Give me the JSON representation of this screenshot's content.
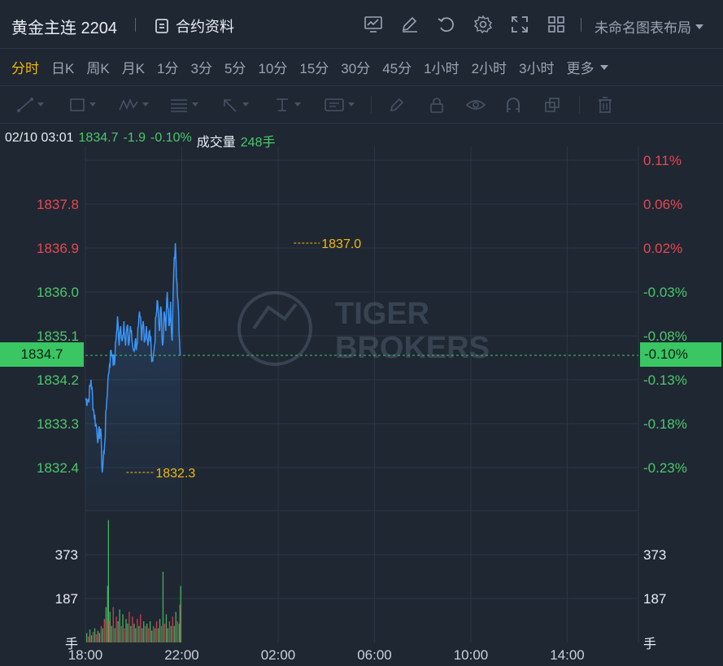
{
  "header": {
    "title": "黄金主连 2204",
    "contract_label": "合约资料",
    "layout_label": "未命名图表布局",
    "icons": [
      "chart-template-icon",
      "edit-icon",
      "undo-icon",
      "settings-icon",
      "fullscreen-icon",
      "grid-layout-icon"
    ]
  },
  "timeframes": {
    "items": [
      "分时",
      "日K",
      "周K",
      "月K",
      "1分",
      "3分",
      "5分",
      "10分",
      "15分",
      "30分",
      "45分",
      "1小时",
      "2小时",
      "3小时"
    ],
    "active": "分时",
    "more_label": "更多"
  },
  "drawing_tools": [
    "trendline-icon",
    "rectangle-icon",
    "pattern-icon",
    "fib-icon",
    "arrow-icon",
    "text-vertical-icon",
    "annotation-icon",
    "brush-icon",
    "lock-icon",
    "eye-icon",
    "magnet-icon",
    "copy-icon",
    "trash-icon"
  ],
  "info_bar": {
    "datetime": "02/10 03:01",
    "price": "1834.7",
    "change": "-1.9",
    "change_pct": "-0.10%",
    "volume_label": "成交量",
    "volume": "248手"
  },
  "watermark": [
    "TIGER",
    "BROKERS"
  ],
  "colors": {
    "up": "#e8474e",
    "down": "#4cc86a",
    "line": "#3d94f6",
    "accent": "#f0b90b",
    "background": "#1f2733"
  },
  "chart_data": {
    "type": "line",
    "x_ticks": [
      "18:00",
      "22:00",
      "02:00",
      "06:00",
      "10:00",
      "14:00"
    ],
    "price_ticks": [
      "1837.8",
      "1836.9",
      "1836.0",
      "1835.1",
      "1834.2",
      "1833.3",
      "1832.4"
    ],
    "pct_ticks": [
      "0.11%",
      "0.06%",
      "0.02%",
      "-0.03%",
      "-0.08%",
      "-0.13%",
      "-0.18%",
      "-0.23%"
    ],
    "price_ylim": [
      1831.5,
      1838.7
    ],
    "last_price": "1834.7",
    "last_pct": "-0.10%",
    "high": {
      "label": "1837.0",
      "x": "02:39",
      "value": 1837.0
    },
    "low": {
      "label": "1832.3",
      "x": "19:42",
      "value": 1832.3
    },
    "series": [
      {
        "values": [
          [
            0,
            1833.8
          ],
          [
            8,
            1833.8
          ],
          [
            14,
            1834.2
          ],
          [
            20,
            1833.6
          ],
          [
            26,
            1833.3
          ],
          [
            32,
            1833.0
          ],
          [
            38,
            1833.2
          ],
          [
            42,
            1832.3
          ],
          [
            48,
            1832.9
          ],
          [
            52,
            1833.6
          ],
          [
            56,
            1834.2
          ],
          [
            60,
            1834.5
          ],
          [
            64,
            1834.8
          ],
          [
            68,
            1834.7
          ],
          [
            72,
            1834.5
          ],
          [
            76,
            1835.0
          ],
          [
            80,
            1835.5
          ],
          [
            84,
            1834.9
          ],
          [
            88,
            1835.3
          ],
          [
            92,
            1835.0
          ],
          [
            96,
            1835.4
          ],
          [
            100,
            1834.9
          ],
          [
            104,
            1835.3
          ],
          [
            108,
            1834.9
          ],
          [
            112,
            1835.3
          ],
          [
            116,
            1835.0
          ],
          [
            120,
            1834.8
          ],
          [
            124,
            1835.0
          ],
          [
            128,
            1834.9
          ],
          [
            132,
            1835.3
          ],
          [
            136,
            1835.5
          ],
          [
            140,
            1835.0
          ],
          [
            144,
            1835.4
          ],
          [
            148,
            1835.0
          ],
          [
            152,
            1835.3
          ],
          [
            156,
            1834.9
          ],
          [
            160,
            1835.2
          ],
          [
            164,
            1834.8
          ],
          [
            168,
            1834.6
          ],
          [
            172,
            1834.9
          ],
          [
            176,
            1835.5
          ],
          [
            180,
            1835.8
          ],
          [
            184,
            1835.2
          ],
          [
            188,
            1835.7
          ],
          [
            192,
            1834.9
          ],
          [
            196,
            1835.6
          ],
          [
            200,
            1835.2
          ],
          [
            204,
            1836.0
          ],
          [
            208,
            1835.3
          ],
          [
            212,
            1835.8
          ],
          [
            216,
            1835.0
          ],
          [
            220,
            1836.4
          ],
          [
            224,
            1837.0
          ],
          [
            228,
            1836.2
          ],
          [
            232,
            1835.6
          ],
          [
            236,
            1834.7
          ]
        ]
      }
    ],
    "volume_ticks": [
      "373",
      "187"
    ],
    "volume_unit": "手",
    "volume_ylim": [
      0,
      560
    ],
    "volume_bars": [
      [
        2,
        40
      ],
      [
        6,
        25
      ],
      [
        10,
        55
      ],
      [
        14,
        30
      ],
      [
        18,
        45
      ],
      [
        22,
        60
      ],
      [
        26,
        35
      ],
      [
        30,
        50
      ],
      [
        34,
        40
      ],
      [
        38,
        70
      ],
      [
        42,
        60
      ],
      [
        46,
        100
      ],
      [
        50,
        150
      ],
      [
        54,
        240
      ],
      [
        55,
        80
      ],
      [
        56,
        520
      ],
      [
        57,
        90
      ],
      [
        60,
        130
      ],
      [
        64,
        70
      ],
      [
        68,
        150
      ],
      [
        72,
        60
      ],
      [
        76,
        110
      ],
      [
        80,
        90
      ],
      [
        84,
        140
      ],
      [
        88,
        70
      ],
      [
        92,
        120
      ],
      [
        96,
        60
      ],
      [
        100,
        100
      ],
      [
        104,
        80
      ],
      [
        108,
        130
      ],
      [
        112,
        70
      ],
      [
        116,
        110
      ],
      [
        120,
        80
      ],
      [
        124,
        60
      ],
      [
        128,
        100
      ],
      [
        132,
        70
      ],
      [
        136,
        120
      ],
      [
        140,
        60
      ],
      [
        144,
        90
      ],
      [
        148,
        70
      ],
      [
        152,
        80
      ],
      [
        156,
        60
      ],
      [
        160,
        90
      ],
      [
        164,
        50
      ],
      [
        168,
        70
      ],
      [
        172,
        60
      ],
      [
        176,
        90
      ],
      [
        180,
        60
      ],
      [
        184,
        100
      ],
      [
        188,
        70
      ],
      [
        192,
        300
      ],
      [
        196,
        80
      ],
      [
        200,
        120
      ],
      [
        204,
        60
      ],
      [
        208,
        90
      ],
      [
        212,
        70
      ],
      [
        216,
        110
      ],
      [
        220,
        70
      ],
      [
        224,
        130
      ],
      [
        228,
        90
      ],
      [
        232,
        80
      ],
      [
        234,
        160
      ],
      [
        236,
        240
      ]
    ]
  }
}
